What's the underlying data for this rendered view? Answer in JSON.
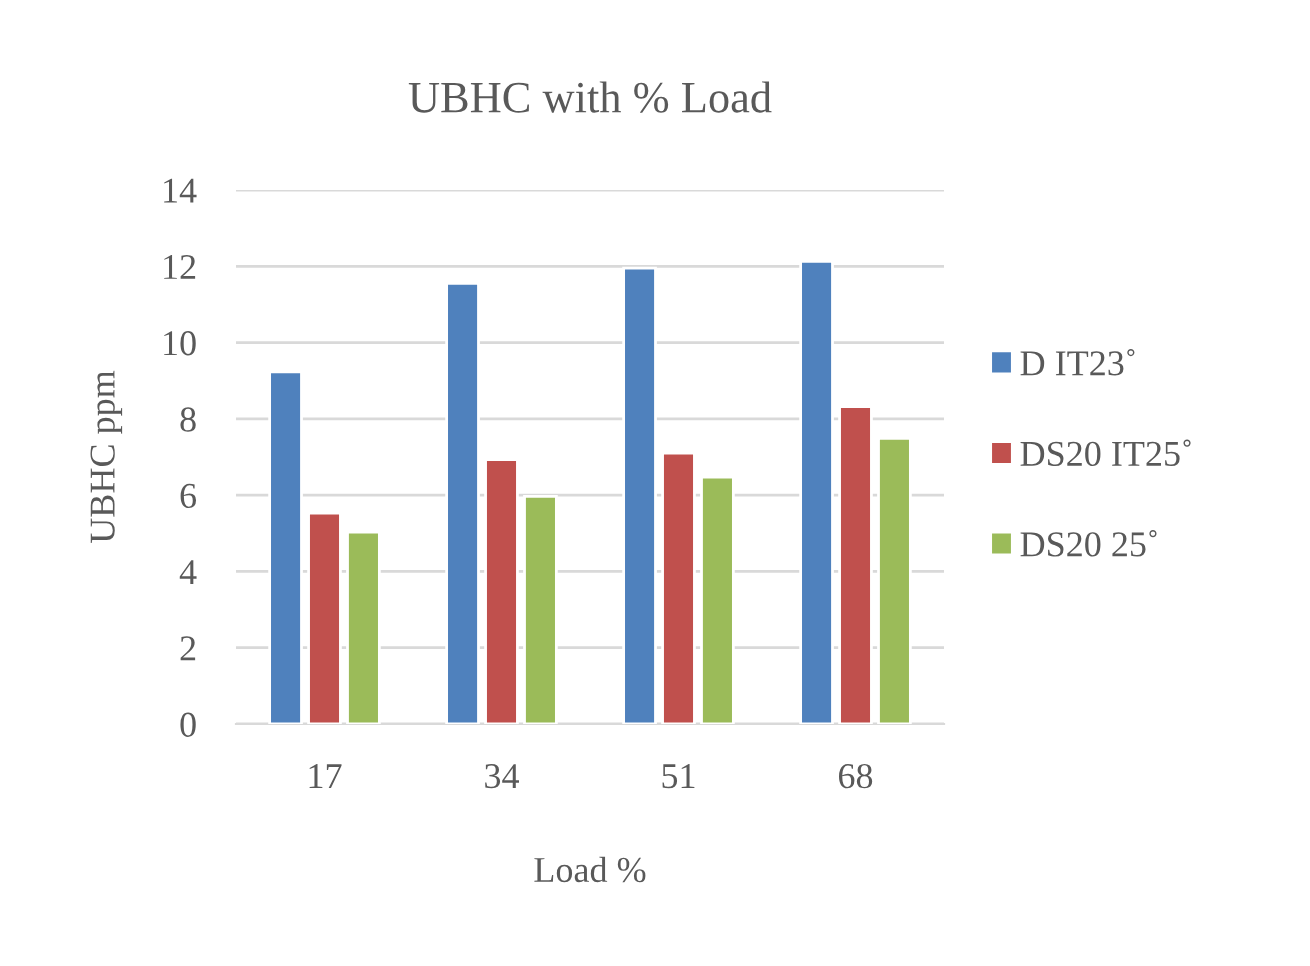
{
  "chart_data": {
    "type": "bar",
    "title": "UBHC with % Load",
    "xlabel": "Load %",
    "ylabel": "UBHC ppm",
    "categories": [
      "17",
      "34",
      "51",
      "68"
    ],
    "series": [
      {
        "name": "D IT23˚",
        "color": "#4f81bd",
        "values": [
          9.23,
          11.55,
          11.95,
          12.13
        ]
      },
      {
        "name": "DS20 IT25˚",
        "color": "#c0504d",
        "values": [
          5.53,
          6.93,
          7.1,
          8.32
        ]
      },
      {
        "name": "DS20 25˚",
        "color": "#9bbb59",
        "values": [
          5.03,
          5.97,
          6.47,
          7.49
        ]
      }
    ],
    "ylim": [
      0,
      14
    ],
    "yticks": [
      0,
      2,
      4,
      6,
      8,
      10,
      12,
      14
    ],
    "grid": "y",
    "legend": "right"
  }
}
